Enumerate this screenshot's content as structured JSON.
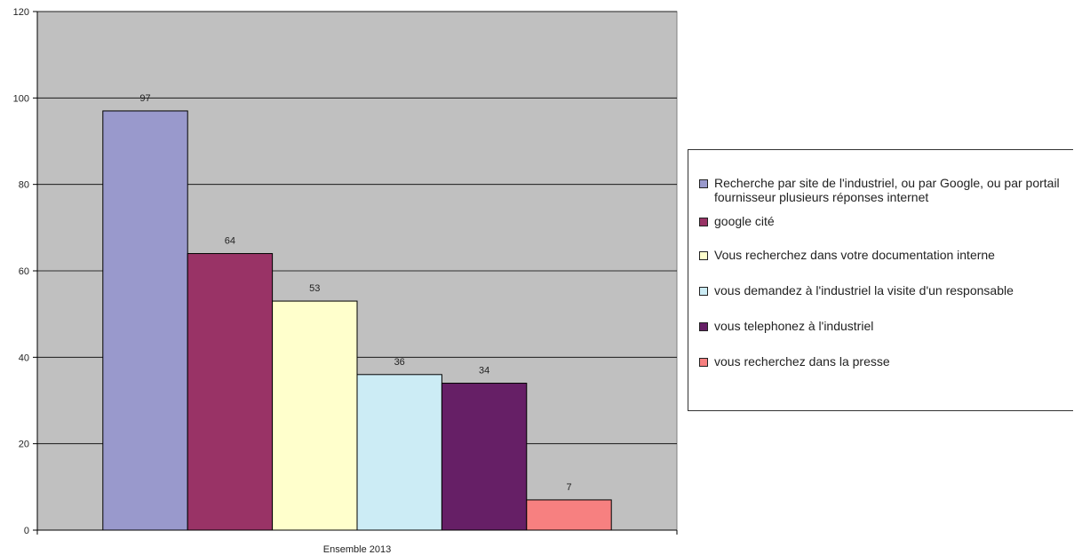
{
  "chart_data": {
    "type": "bar",
    "categories": [
      "Ensemble 2013"
    ],
    "series": [
      {
        "name": "Recherche par site de l'industriel, ou par Google, ou par portail fournisseur plusieurs réponses internet",
        "values": [
          97
        ],
        "color": "#9999cc"
      },
      {
        "name": "google cité",
        "values": [
          64
        ],
        "color": "#993366"
      },
      {
        "name": "Vous recherchez dans votre documentation interne",
        "values": [
          53
        ],
        "color": "#ffffcc"
      },
      {
        "name": "vous demandez à l'industriel la visite d'un responsable",
        "values": [
          36
        ],
        "color": "#ccecf5"
      },
      {
        "name": "vous telephonez à l'industriel",
        "values": [
          34
        ],
        "color": "#661f66"
      },
      {
        "name": "vous recherchez dans la presse",
        "values": [
          7
        ],
        "color": "#f78080"
      }
    ],
    "data_labels": [
      "97",
      "64",
      "53",
      "36",
      "34",
      "7"
    ],
    "y_ticks": [
      "0",
      "20",
      "40",
      "60",
      "80",
      "100",
      "120"
    ],
    "ylim": [
      0,
      120
    ],
    "grid": true,
    "legend_position": "right",
    "plot_background": "#c0c0c0"
  }
}
